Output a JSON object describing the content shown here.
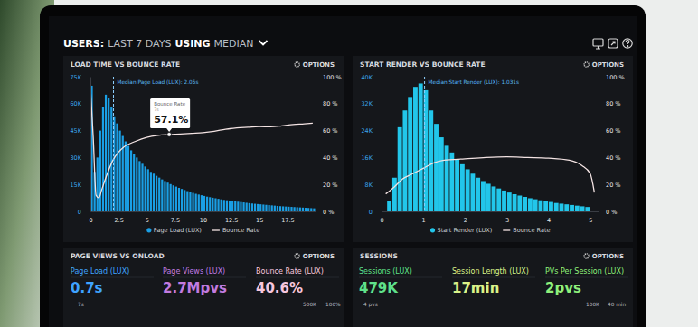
{
  "header": {
    "parts": [
      "USERS:",
      "LAST 7 DAYS",
      "USING",
      "MEDIAN"
    ]
  },
  "chart_data": [
    {
      "type": "histogram",
      "title": "LOAD TIME VS BOUNCE RATE",
      "options_label": "OPTIONS",
      "bins": [
        0,
        0.25,
        0.5,
        0.75,
        1,
        1.25,
        1.5,
        1.75,
        2,
        2.25,
        2.5,
        2.75,
        3,
        3.25,
        3.5,
        3.75,
        4,
        4.25,
        4.5,
        4.75,
        5,
        5.25,
        5.5,
        5.75,
        6,
        6.25,
        6.5,
        6.75,
        7,
        7.25,
        7.5,
        7.75,
        8,
        8.25,
        8.5,
        8.75,
        9,
        9.25,
        9.5,
        9.75,
        10,
        10.25,
        10.5,
        10.75,
        11,
        11.25,
        11.5,
        11.75,
        12,
        12.25,
        12.5,
        12.75,
        13,
        13.25,
        13.5,
        13.75,
        14,
        14.25,
        14.5,
        14.75,
        15,
        15.25,
        15.5,
        15.75,
        16,
        16.25,
        16.5,
        16.75,
        17,
        17.25,
        17.5,
        17.75,
        18,
        18.25,
        18.5,
        18.75,
        19,
        19.25,
        19.5,
        19.75,
        20
      ],
      "series": [
        {
          "name": "Page Load (LUX)",
          "color": "#1a9fe5",
          "values": [
            70000,
            22000,
            30000,
            45000,
            58000,
            65000,
            63000,
            58000,
            53000,
            49000,
            45000,
            42000,
            39000,
            36500,
            34000,
            32000,
            30000,
            28000,
            26500,
            25000,
            23500,
            22000,
            21000,
            19800,
            18800,
            17800,
            16900,
            16000,
            15200,
            14500,
            13800,
            13100,
            12500,
            11900,
            11300,
            10800,
            10300,
            9800,
            9400,
            9000,
            8600,
            8200,
            7900,
            7600,
            7300,
            7000,
            6700,
            6400,
            6200,
            6000,
            5800,
            5600,
            5400,
            5200,
            5000,
            4800,
            4600,
            4400,
            4250,
            4100,
            3950,
            3800,
            3650,
            3500,
            3350,
            3200,
            3050,
            2900,
            2800,
            2700,
            2600,
            2500,
            2400,
            2300,
            2200,
            2100,
            2000,
            1900,
            1800,
            1700
          ]
        },
        {
          "name": "Bounce Rate",
          "type": "line",
          "axis": "y2",
          "color": "#f4e4e4",
          "x": [
            0,
            0.25,
            0.5,
            0.75,
            1,
            1.5,
            2,
            2.5,
            3,
            4,
            5,
            6,
            7,
            8,
            9,
            10,
            11,
            12,
            13,
            14,
            15,
            16,
            17,
            18,
            19,
            19.75
          ],
          "values": [
            92,
            55,
            12,
            10,
            16,
            28,
            38,
            44,
            48,
            52,
            55,
            56.5,
            57.1,
            57.5,
            58,
            58.5,
            59.5,
            61,
            62,
            62.5,
            63,
            62.8,
            63.5,
            64.5,
            65,
            65.5
          ]
        }
      ],
      "xlim": [
        0,
        20
      ],
      "xticks": [
        0,
        2.5,
        5,
        7.5,
        10,
        12.5,
        15,
        17.5
      ],
      "ylim": [
        0,
        75000
      ],
      "yticks": [
        0,
        {
          "value": 15000,
          "label": "15K"
        },
        {
          "value": 30000,
          "label": "30K"
        },
        {
          "value": 45000,
          "label": "45K"
        },
        {
          "value": 60000,
          "label": "60K"
        },
        {
          "value": 75000,
          "label": "75K"
        }
      ],
      "y2lim": [
        0,
        100
      ],
      "y2ticks": [
        {
          "value": 0,
          "label": "0 %"
        },
        {
          "value": 20,
          "label": "20 %"
        },
        {
          "value": 40,
          "label": "40 %"
        },
        {
          "value": 60,
          "label": "60 %"
        },
        {
          "value": 80,
          "label": "80 %"
        },
        {
          "value": 100,
          "label": "100 %"
        }
      ],
      "median": {
        "label": "Median Page Load (LUX): 2.05s",
        "x": 2.05
      },
      "tooltip": {
        "title": "Bounce Rate",
        "x": 7,
        "x_label": "7s",
        "value": 57.1,
        "value_label": "57.1%"
      },
      "legend": "bottom"
    },
    {
      "type": "histogram",
      "title": "START RENDER VS BOUNCE RATE",
      "options_label": "OPTIONS",
      "bins": [
        0.125,
        0.25,
        0.375,
        0.5,
        0.625,
        0.75,
        0.875,
        1,
        1.125,
        1.25,
        1.375,
        1.5,
        1.625,
        1.75,
        1.875,
        2,
        2.125,
        2.25,
        2.375,
        2.5,
        2.625,
        2.75,
        2.875,
        3,
        3.125,
        3.25,
        3.375,
        3.5,
        3.625,
        3.75,
        3.875,
        4,
        4.125,
        4.25,
        4.375,
        4.5,
        4.625,
        4.75,
        4.875,
        5
      ],
      "series": [
        {
          "name": "Start Render (LUX)",
          "color": "#22c6ea",
          "values": [
            3000,
            10000,
            25000,
            30000,
            34000,
            37000,
            38000,
            36000,
            30000,
            26000,
            22000,
            19500,
            17500,
            15500,
            14000,
            12500,
            11200,
            10000,
            9000,
            8200,
            7400,
            6800,
            6200,
            5600,
            5100,
            4700,
            4300,
            3900,
            3600,
            3300,
            3000,
            2800,
            2500,
            2300,
            2100,
            1900,
            1700,
            1500,
            1300
          ]
        },
        {
          "name": "Bounce Rate",
          "type": "line",
          "axis": "y2",
          "color": "#f4e4e4",
          "x": [
            0.1,
            0.3,
            0.5,
            0.75,
            1,
            1.25,
            1.5,
            2,
            2.5,
            3,
            3.5,
            4,
            4.5,
            4.8,
            5,
            5.1
          ],
          "values": [
            13,
            18,
            24,
            28,
            32,
            36,
            38,
            39,
            40,
            40.5,
            40,
            39.5,
            38,
            34,
            28,
            14
          ]
        }
      ],
      "xlim": [
        0,
        5.2
      ],
      "xticks": [
        0,
        1,
        2,
        3,
        4,
        5
      ],
      "ylim": [
        0,
        40000
      ],
      "yticks": [
        0,
        {
          "value": 8000,
          "label": "8K"
        },
        {
          "value": 16000,
          "label": "16K"
        },
        {
          "value": 24000,
          "label": "24K"
        },
        {
          "value": 32000,
          "label": "32K"
        },
        {
          "value": 40000,
          "label": "40K"
        }
      ],
      "y2lim": [
        0,
        100
      ],
      "y2ticks": [
        {
          "value": 0,
          "label": "0 %"
        },
        {
          "value": 20,
          "label": "20 %"
        },
        {
          "value": 40,
          "label": "40 %"
        },
        {
          "value": 60,
          "label": "60 %"
        },
        {
          "value": 80,
          "label": "80 %"
        },
        {
          "value": 100,
          "label": "100 %"
        }
      ],
      "median": {
        "label": "Median Start Render (LUX): 1.031s",
        "x": 1.031
      },
      "legend": "bottom"
    }
  ],
  "panels": [
    {
      "title": "PAGE VIEWS VS ONLOAD",
      "options_label": "OPTIONS",
      "kpis": [
        {
          "label": "Page Load (LUX)",
          "value": "0.7s",
          "color": "#3fa3ff"
        },
        {
          "label": "Page Views (LUX)",
          "value": "2.7Mpvs",
          "color": "#c27be0"
        },
        {
          "label": "Bounce Rate (LUX)",
          "value": "40.6%",
          "color": "#f6c6dc"
        }
      ],
      "fragments": [
        "7s",
        "500K",
        "100%"
      ]
    },
    {
      "title": "SESSIONS",
      "options_label": "OPTIONS",
      "kpis": [
        {
          "label": "Sessions (LUX)",
          "value": "479K",
          "color": "#5fe08a"
        },
        {
          "label": "Session Length (LUX)",
          "value": "17min",
          "color": "#d9f28a"
        },
        {
          "label": "PVs Per Session (LUX)",
          "value": "2pvs",
          "color": "#8ef07a"
        }
      ],
      "fragments": [
        "4 pvs",
        "100K",
        "40 min"
      ]
    }
  ]
}
